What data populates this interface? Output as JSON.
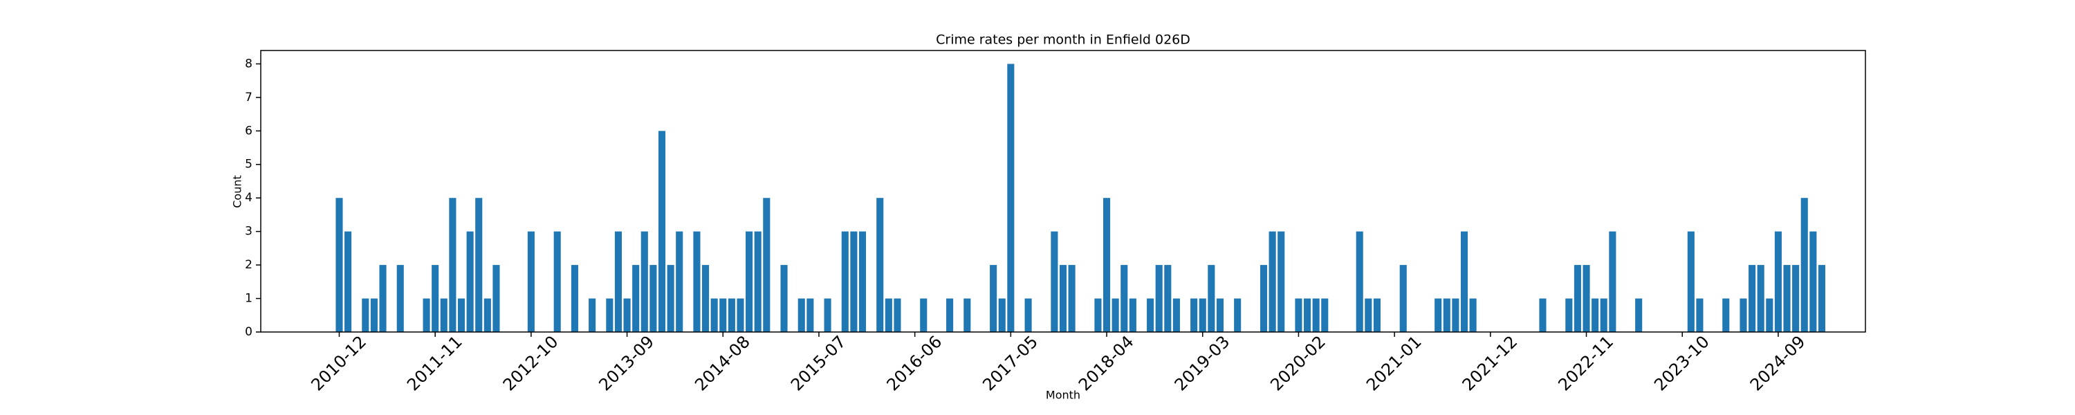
{
  "chart_data": {
    "type": "bar",
    "title": "Crime rates per month in Enfield 026D",
    "xlabel": "Month",
    "ylabel": "Count",
    "color": "#1f77b4",
    "x": [
      "2010-12",
      "2011-01",
      "2011-03",
      "2011-04",
      "2011-05",
      "2011-07",
      "2011-10",
      "2011-11",
      "2011-12",
      "2012-01",
      "2012-02",
      "2012-03",
      "2012-04",
      "2012-05",
      "2012-06",
      "2012-10",
      "2013-01",
      "2013-03",
      "2013-05",
      "2013-07",
      "2013-08",
      "2013-09",
      "2013-10",
      "2013-11",
      "2013-12",
      "2014-01",
      "2014-02",
      "2014-03",
      "2014-05",
      "2014-06",
      "2014-07",
      "2014-08",
      "2014-09",
      "2014-10",
      "2014-11",
      "2014-12",
      "2015-01",
      "2015-03",
      "2015-05",
      "2015-06",
      "2015-08",
      "2015-10",
      "2015-11",
      "2015-12",
      "2016-02",
      "2016-03",
      "2016-04",
      "2016-07",
      "2016-10",
      "2016-12",
      "2017-03",
      "2017-04",
      "2017-05",
      "2017-07",
      "2017-10",
      "2017-11",
      "2017-12",
      "2018-03",
      "2018-04",
      "2018-05",
      "2018-06",
      "2018-07",
      "2018-09",
      "2018-10",
      "2018-11",
      "2018-12",
      "2019-02",
      "2019-03",
      "2019-04",
      "2019-05",
      "2019-07",
      "2019-10",
      "2019-11",
      "2019-12",
      "2020-02",
      "2020-03",
      "2020-04",
      "2020-05",
      "2020-09",
      "2020-10",
      "2020-11",
      "2021-02",
      "2021-06",
      "2021-07",
      "2021-08",
      "2021-09",
      "2021-10",
      "2022-06",
      "2022-09",
      "2022-10",
      "2022-11",
      "2022-12",
      "2023-01",
      "2023-02",
      "2023-05",
      "2023-11",
      "2023-12",
      "2024-03",
      "2024-05",
      "2024-06",
      "2024-07",
      "2024-08",
      "2024-09",
      "2024-10",
      "2024-11",
      "2024-12",
      "2025-01",
      "2025-02"
    ],
    "values": [
      4,
      3,
      1,
      1,
      2,
      2,
      1,
      2,
      1,
      4,
      1,
      3,
      4,
      1,
      2,
      3,
      3,
      2,
      1,
      1,
      3,
      1,
      2,
      3,
      2,
      6,
      2,
      3,
      3,
      2,
      1,
      1,
      1,
      1,
      3,
      3,
      4,
      2,
      1,
      1,
      1,
      3,
      3,
      3,
      4,
      1,
      1,
      1,
      1,
      1,
      2,
      1,
      8,
      1,
      3,
      2,
      2,
      1,
      4,
      1,
      2,
      1,
      1,
      2,
      2,
      1,
      1,
      1,
      2,
      1,
      1,
      2,
      3,
      3,
      1,
      1,
      1,
      1,
      3,
      1,
      1,
      2,
      1,
      1,
      1,
      3,
      1,
      1,
      1,
      2,
      2,
      1,
      1,
      3,
      1,
      3,
      1,
      1,
      1,
      2,
      2,
      1,
      3,
      2,
      2,
      4,
      3,
      2
    ],
    "xlim": [
      "2010-03",
      "2025-07"
    ],
    "xticks": [
      "2010-12",
      "2011-11",
      "2012-10",
      "2013-09",
      "2014-08",
      "2015-07",
      "2016-06",
      "2017-05",
      "2018-04",
      "2019-03",
      "2020-02",
      "2021-01",
      "2021-12",
      "2022-11",
      "2023-10",
      "2024-09"
    ],
    "ylim": [
      0,
      8.4
    ],
    "yticks": [
      0,
      1,
      2,
      3,
      4,
      5,
      6,
      7,
      8
    ]
  }
}
